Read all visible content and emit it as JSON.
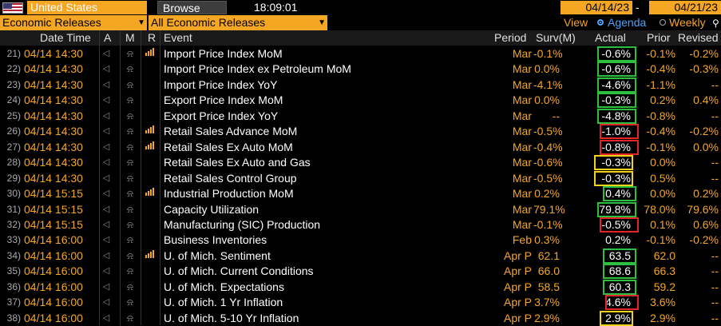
{
  "toolbar": {
    "country": "United States",
    "browse_label": "Browse",
    "time": "18:09:01",
    "date_from": "04/14/23",
    "date_sep": "-",
    "date_to": "04/21/23"
  },
  "filters": {
    "category": "Economic Releases",
    "subcategory": "All Economic Releases",
    "view_label": "View",
    "view_options": [
      "Agenda",
      "Weekly"
    ],
    "view_selected": "Agenda"
  },
  "columns": [
    "Date Time",
    "A",
    "M",
    "R",
    "Event",
    "Period",
    "Surv(M)",
    "Actual",
    "Prior",
    "Revised"
  ],
  "rows": [
    {
      "n": "21)",
      "dt": "04/14 14:30",
      "alert": true,
      "rel": true,
      "event": "Import Price Index MoM",
      "period": "Mar",
      "surv": "-0.1%",
      "actual": "-0.6%",
      "prior": "-0.1%",
      "revised": "-0.2%",
      "hl": "green"
    },
    {
      "n": "22)",
      "dt": "04/14 14:30",
      "alert": true,
      "rel": false,
      "event": "Import Price Index ex Petroleum MoM",
      "period": "Mar",
      "surv": "0.0%",
      "actual": "-0.6%",
      "prior": "-0.4%",
      "revised": "-0.3%",
      "hl": "green"
    },
    {
      "n": "23)",
      "dt": "04/14 14:30",
      "alert": true,
      "rel": false,
      "event": "Import Price Index YoY",
      "period": "Mar",
      "surv": "-4.1%",
      "actual": "-4.6%",
      "prior": "-1.1%",
      "revised": "--",
      "hl": "green"
    },
    {
      "n": "24)",
      "dt": "04/14 14:30",
      "alert": true,
      "rel": false,
      "event": "Export Price Index MoM",
      "period": "Mar",
      "surv": "0.0%",
      "actual": "-0.3%",
      "prior": "0.2%",
      "revised": "0.4%",
      "hl": "green"
    },
    {
      "n": "25)",
      "dt": "04/14 14:30",
      "alert": true,
      "rel": false,
      "event": "Export Price Index YoY",
      "period": "Mar",
      "surv": "--",
      "actual": "-4.8%",
      "prior": "-0.8%",
      "revised": "--",
      "hl": "green"
    },
    {
      "n": "26)",
      "dt": "04/14 14:30",
      "alert": true,
      "rel": true,
      "event": "Retail Sales Advance MoM",
      "period": "Mar",
      "surv": "-0.5%",
      "actual": "-1.0%",
      "prior": "-0.4%",
      "revised": "-0.2%",
      "hl": "red"
    },
    {
      "n": "27)",
      "dt": "04/14 14:30",
      "alert": true,
      "rel": true,
      "event": "Retail Sales Ex Auto MoM",
      "period": "Mar",
      "surv": "-0.4%",
      "actual": "-0.8%",
      "prior": "-0.1%",
      "revised": "0.0%",
      "hl": "red"
    },
    {
      "n": "28)",
      "dt": "04/14 14:30",
      "alert": true,
      "rel": false,
      "event": "Retail Sales Ex Auto and Gas",
      "period": "Mar",
      "surv": "-0.6%",
      "actual": "-0.3%",
      "prior": "0.0%",
      "revised": "--",
      "hl": "yellow"
    },
    {
      "n": "29)",
      "dt": "04/14 14:30",
      "alert": true,
      "rel": false,
      "event": "Retail Sales Control Group",
      "period": "Mar",
      "surv": "-0.5%",
      "actual": "-0.3%",
      "prior": "0.5%",
      "revised": "--",
      "hl": "yellow"
    },
    {
      "n": "30)",
      "dt": "04/14 15:15",
      "alert": true,
      "rel": true,
      "event": "Industrial Production MoM",
      "period": "Mar",
      "surv": "0.2%",
      "actual": "0.4%",
      "prior": "0.0%",
      "revised": "0.2%",
      "hl": "green"
    },
    {
      "n": "31)",
      "dt": "04/14 15:15",
      "alert": true,
      "rel": false,
      "event": "Capacity Utilization",
      "period": "Mar",
      "surv": "79.1%",
      "actual": "79.8%",
      "prior": "78.0%",
      "revised": "79.6%",
      "hl": "green"
    },
    {
      "n": "32)",
      "dt": "04/14 15:15",
      "alert": true,
      "rel": false,
      "event": "Manufacturing (SIC) Production",
      "period": "Mar",
      "surv": "-0.1%",
      "actual": "-0.5%",
      "prior": "0.1%",
      "revised": "0.6%",
      "hl": "red"
    },
    {
      "n": "33)",
      "dt": "04/14 16:00",
      "alert": true,
      "rel": false,
      "event": "Business Inventories",
      "period": "Feb",
      "surv": "0.3%",
      "actual": "0.2%",
      "prior": "-0.1%",
      "revised": "-0.2%",
      "hl": ""
    },
    {
      "n": "34)",
      "dt": "04/14 16:00",
      "alert": true,
      "rel": true,
      "event": "U. of Mich. Sentiment",
      "period": "Apr P",
      "surv": "62.1",
      "actual": "63.5",
      "prior": "62.0",
      "revised": "--",
      "hl": "green"
    },
    {
      "n": "35)",
      "dt": "04/14 16:00",
      "alert": true,
      "rel": false,
      "event": "U. of Mich. Current Conditions",
      "period": "Apr P",
      "surv": "66.0",
      "actual": "68.6",
      "prior": "66.3",
      "revised": "--",
      "hl": "green"
    },
    {
      "n": "36)",
      "dt": "04/14 16:00",
      "alert": true,
      "rel": false,
      "event": "U. of Mich. Expectations",
      "period": "Apr P",
      "surv": "58.5",
      "actual": "60.3",
      "prior": "59.2",
      "revised": "--",
      "hl": "green"
    },
    {
      "n": "37)",
      "dt": "04/14 16:00",
      "alert": true,
      "rel": false,
      "event": "U. of Mich. 1 Yr Inflation",
      "period": "Apr P",
      "surv": "3.7%",
      "actual": "4.6%",
      "prior": "3.6%",
      "revised": "--",
      "hl": "red"
    },
    {
      "n": "38)",
      "dt": "04/14 16:00",
      "alert": true,
      "rel": false,
      "event": "U. of Mich. 5-10 Yr Inflation",
      "period": "Apr P",
      "surv": "2.9%",
      "actual": "2.9%",
      "prior": "2.9%",
      "revised": "--",
      "hl": "yellow"
    }
  ],
  "colors": {
    "orange": "#f5a623",
    "green": "#2fbf3f",
    "red": "#e32525",
    "yellow": "#f2d21b",
    "blue": "#4aa3ff"
  }
}
